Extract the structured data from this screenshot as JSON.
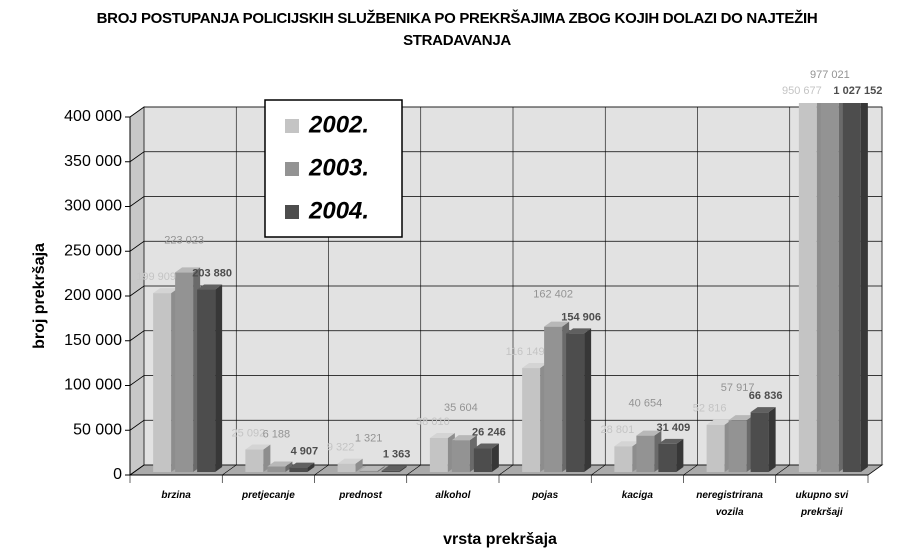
{
  "chart_data": {
    "type": "bar3d",
    "title": "BROJ POSTUPANJA POLICIJSKIH SLUŽBENIKA PO PREKRŠAJIMA ZBOG KOJIH DOLAZI DO NAJTEŽIH STRADAVANJA",
    "x_label": "vrsta prekršaja",
    "y_label": "broj prekršaja",
    "categories": [
      "brzina",
      "pretjecanje",
      "prednost",
      "alkohol",
      "pojas",
      "kaciga",
      "neregistrirana vozila",
      "ukupno svi prekršaji"
    ],
    "series": [
      {
        "name": "2002.",
        "color": "#c4c4c4",
        "values": [
          199909,
          25092,
          9322,
          38010,
          116149,
          28801,
          52816,
          950677
        ],
        "value_labels": [
          "199 909",
          "25 092",
          "9 322",
          "38 010",
          "116 149",
          "28 801",
          "52 816",
          "950 677"
        ]
      },
      {
        "name": "2003.",
        "color": "#939393",
        "values": [
          223023,
          6188,
          1321,
          35604,
          162402,
          40654,
          57917,
          977021
        ],
        "value_labels": [
          "223 023",
          "6 188",
          "1 321",
          "35 604",
          "162 402",
          "40 654",
          "57 917",
          "977 021"
        ]
      },
      {
        "name": "2004.",
        "color": "#4d4d4d",
        "values": [
          203880,
          4907,
          1363,
          26246,
          154906,
          31409,
          66836,
          1027152
        ],
        "value_labels": [
          "203 880",
          "4 907",
          "1 363",
          "26 246",
          "154 906",
          "31 409",
          "66 836",
          "1 027 152"
        ]
      }
    ],
    "ylim": [
      0,
      400000
    ],
    "yticks": [
      0,
      {
        "value": 50000,
        "label": "50 000"
      },
      {
        "value": 100000,
        "label": "100 000"
      },
      {
        "value": 150000,
        "label": "150 000"
      },
      {
        "value": 200000,
        "label": "200 000"
      },
      {
        "value": 250000,
        "label": "250 000"
      },
      {
        "value": 300000,
        "label": "300 000"
      },
      {
        "value": 350000,
        "label": "350 000"
      },
      {
        "value": 400000,
        "label": "400 000"
      }
    ],
    "grid": true,
    "legend": "top-left"
  }
}
